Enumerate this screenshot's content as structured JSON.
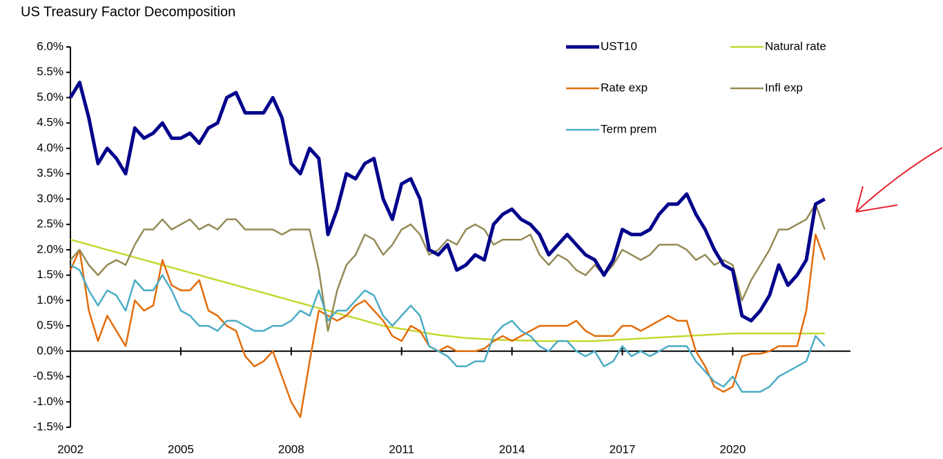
{
  "chart_data": {
    "type": "line",
    "title": "US Treasury Factor Decomposition",
    "x": [
      2002,
      2002.25,
      2002.5,
      2002.75,
      2003,
      2003.25,
      2003.5,
      2003.75,
      2004,
      2004.25,
      2004.5,
      2004.75,
      2005,
      2005.25,
      2005.5,
      2005.75,
      2006,
      2006.25,
      2006.5,
      2006.75,
      2007,
      2007.25,
      2007.5,
      2007.75,
      2008,
      2008.25,
      2008.5,
      2008.75,
      2009,
      2009.25,
      2009.5,
      2009.75,
      2010,
      2010.25,
      2010.5,
      2010.75,
      2011,
      2011.25,
      2011.5,
      2011.75,
      2012,
      2012.25,
      2012.5,
      2012.75,
      2013,
      2013.25,
      2013.5,
      2013.75,
      2014,
      2014.25,
      2014.5,
      2014.75,
      2015,
      2015.25,
      2015.5,
      2015.75,
      2016,
      2016.25,
      2016.5,
      2016.75,
      2017,
      2017.25,
      2017.5,
      2017.75,
      2018,
      2018.25,
      2018.5,
      2018.75,
      2019,
      2019.25,
      2019.5,
      2019.75,
      2020,
      2020.25,
      2020.5,
      2020.75,
      2021,
      2021.25,
      2021.5,
      2021.75,
      2022,
      2022.25,
      2022.5
    ],
    "series": [
      {
        "name": "UST10",
        "color": "#00008b",
        "width": 5,
        "values": [
          5.0,
          5.3,
          4.6,
          3.7,
          4.0,
          3.8,
          3.5,
          4.4,
          4.2,
          4.3,
          4.5,
          4.2,
          4.2,
          4.3,
          4.1,
          4.4,
          4.5,
          5.0,
          5.1,
          4.7,
          4.7,
          4.7,
          5.0,
          4.6,
          3.7,
          3.5,
          4.0,
          3.8,
          2.3,
          2.8,
          3.5,
          3.4,
          3.7,
          3.8,
          3.0,
          2.6,
          3.3,
          3.4,
          3.0,
          2.0,
          1.9,
          2.1,
          1.6,
          1.7,
          1.9,
          1.8,
          2.5,
          2.7,
          2.8,
          2.6,
          2.5,
          2.3,
          1.9,
          2.1,
          2.3,
          2.1,
          1.9,
          1.8,
          1.5,
          1.8,
          2.4,
          2.3,
          2.3,
          2.4,
          2.7,
          2.9,
          2.9,
          3.1,
          2.7,
          2.4,
          2.0,
          1.7,
          1.6,
          0.7,
          0.6,
          0.8,
          1.1,
          1.7,
          1.3,
          1.5,
          1.8,
          2.9,
          3.0
        ]
      },
      {
        "name": "Natural rate",
        "color": "#c5d72e",
        "width": 2.5,
        "values": [
          2.2,
          2.15,
          2.1,
          2.05,
          2.0,
          1.95,
          1.9,
          1.85,
          1.8,
          1.75,
          1.7,
          1.65,
          1.6,
          1.55,
          1.5,
          1.45,
          1.4,
          1.35,
          1.3,
          1.25,
          1.2,
          1.15,
          1.1,
          1.05,
          1.0,
          0.95,
          0.9,
          0.85,
          0.8,
          0.75,
          0.7,
          0.65,
          0.6,
          0.55,
          0.5,
          0.47,
          0.44,
          0.41,
          0.38,
          0.35,
          0.32,
          0.3,
          0.28,
          0.26,
          0.25,
          0.24,
          0.23,
          0.22,
          0.22,
          0.21,
          0.21,
          0.2,
          0.2,
          0.2,
          0.2,
          0.2,
          0.2,
          0.2,
          0.21,
          0.22,
          0.23,
          0.24,
          0.25,
          0.26,
          0.27,
          0.28,
          0.29,
          0.3,
          0.31,
          0.32,
          0.33,
          0.34,
          0.35,
          0.35,
          0.35,
          0.35,
          0.35,
          0.35,
          0.35,
          0.35,
          0.35,
          0.35,
          0.35
        ]
      },
      {
        "name": "Rate exp",
        "color": "#e36c0a",
        "width": 2.5,
        "values": [
          1.6,
          2.0,
          0.8,
          0.2,
          0.7,
          0.4,
          0.1,
          1.0,
          0.8,
          0.9,
          1.8,
          1.3,
          1.2,
          1.2,
          1.4,
          0.8,
          0.7,
          0.5,
          0.4,
          -0.1,
          -0.3,
          -0.2,
          0.0,
          -0.5,
          -1.0,
          -1.3,
          -0.2,
          0.8,
          0.7,
          0.6,
          0.7,
          0.9,
          1.0,
          0.8,
          0.6,
          0.3,
          0.2,
          0.5,
          0.4,
          0.1,
          0.0,
          0.1,
          0.0,
          0.0,
          0.0,
          0.05,
          0.2,
          0.3,
          0.2,
          0.3,
          0.4,
          0.5,
          0.5,
          0.5,
          0.5,
          0.6,
          0.4,
          0.3,
          0.3,
          0.3,
          0.5,
          0.5,
          0.4,
          0.5,
          0.6,
          0.7,
          0.6,
          0.6,
          0.0,
          -0.3,
          -0.7,
          -0.8,
          -0.7,
          -0.1,
          -0.05,
          -0.05,
          0.0,
          0.1,
          0.1,
          0.1,
          0.8,
          2.3,
          1.8
        ]
      },
      {
        "name": "Infl exp",
        "color": "#948a54",
        "width": 2.5,
        "values": [
          1.8,
          2.0,
          1.7,
          1.5,
          1.7,
          1.8,
          1.7,
          2.1,
          2.4,
          2.4,
          2.6,
          2.4,
          2.5,
          2.6,
          2.4,
          2.5,
          2.4,
          2.6,
          2.6,
          2.4,
          2.4,
          2.4,
          2.4,
          2.3,
          2.4,
          2.4,
          2.4,
          1.6,
          0.4,
          1.2,
          1.7,
          1.9,
          2.3,
          2.2,
          1.9,
          2.1,
          2.4,
          2.5,
          2.3,
          1.9,
          2.0,
          2.2,
          2.1,
          2.4,
          2.5,
          2.4,
          2.1,
          2.2,
          2.2,
          2.2,
          2.3,
          1.9,
          1.7,
          1.9,
          1.8,
          1.6,
          1.5,
          1.7,
          1.5,
          1.7,
          2.0,
          1.9,
          1.8,
          1.9,
          2.1,
          2.1,
          2.1,
          2.0,
          1.8,
          1.9,
          1.7,
          1.8,
          1.7,
          1.0,
          1.4,
          1.7,
          2.0,
          2.4,
          2.4,
          2.5,
          2.6,
          2.9,
          2.4
        ]
      },
      {
        "name": "Term prem",
        "color": "#4bacc6",
        "width": 2.5,
        "values": [
          1.7,
          1.6,
          1.2,
          0.9,
          1.2,
          1.1,
          0.8,
          1.4,
          1.2,
          1.2,
          1.5,
          1.2,
          0.8,
          0.7,
          0.5,
          0.5,
          0.4,
          0.6,
          0.6,
          0.5,
          0.4,
          0.4,
          0.5,
          0.5,
          0.6,
          0.8,
          0.7,
          1.2,
          0.6,
          0.8,
          0.8,
          1.0,
          1.2,
          1.1,
          0.7,
          0.5,
          0.7,
          0.9,
          0.7,
          0.1,
          0.0,
          -0.1,
          -0.3,
          -0.3,
          -0.2,
          -0.2,
          0.3,
          0.5,
          0.6,
          0.4,
          0.3,
          0.1,
          0.0,
          0.2,
          0.2,
          0.0,
          -0.1,
          0.0,
          -0.3,
          -0.2,
          0.1,
          -0.1,
          0.0,
          -0.1,
          0.0,
          0.1,
          0.1,
          0.1,
          -0.2,
          -0.4,
          -0.6,
          -0.7,
          -0.5,
          -0.8,
          -0.8,
          -0.8,
          -0.7,
          -0.5,
          -0.4,
          -0.3,
          -0.2,
          0.3,
          0.1
        ]
      }
    ],
    "xlim": [
      2002,
      2023.2
    ],
    "xticks": [
      2002,
      2005,
      2008,
      2011,
      2014,
      2017,
      2020
    ],
    "ylim": [
      -1.5,
      6.0
    ],
    "yticks": [
      {
        "value": -1.5,
        "label": "-1.5%"
      },
      {
        "value": -1.0,
        "label": "-1.0%"
      },
      {
        "value": -0.5,
        "label": "-0.5%"
      },
      {
        "value": 0.0,
        "label": "0.0%"
      },
      {
        "value": 0.5,
        "label": "0.5%"
      },
      {
        "value": 1.0,
        "label": "1.0%"
      },
      {
        "value": 1.5,
        "label": "1.5%"
      },
      {
        "value": 2.0,
        "label": "2.0%"
      },
      {
        "value": 2.5,
        "label": "2.5%"
      },
      {
        "value": 3.0,
        "label": "3.0%"
      },
      {
        "value": 3.5,
        "label": "3.5%"
      },
      {
        "value": 4.0,
        "label": "4.0%"
      },
      {
        "value": 4.5,
        "label": "4.5%"
      },
      {
        "value": 5.0,
        "label": "5.0%"
      },
      {
        "value": 5.5,
        "label": "5.5%"
      },
      {
        "value": 6.0,
        "label": "6.0%"
      }
    ],
    "grid": false,
    "legend": "top-right"
  }
}
